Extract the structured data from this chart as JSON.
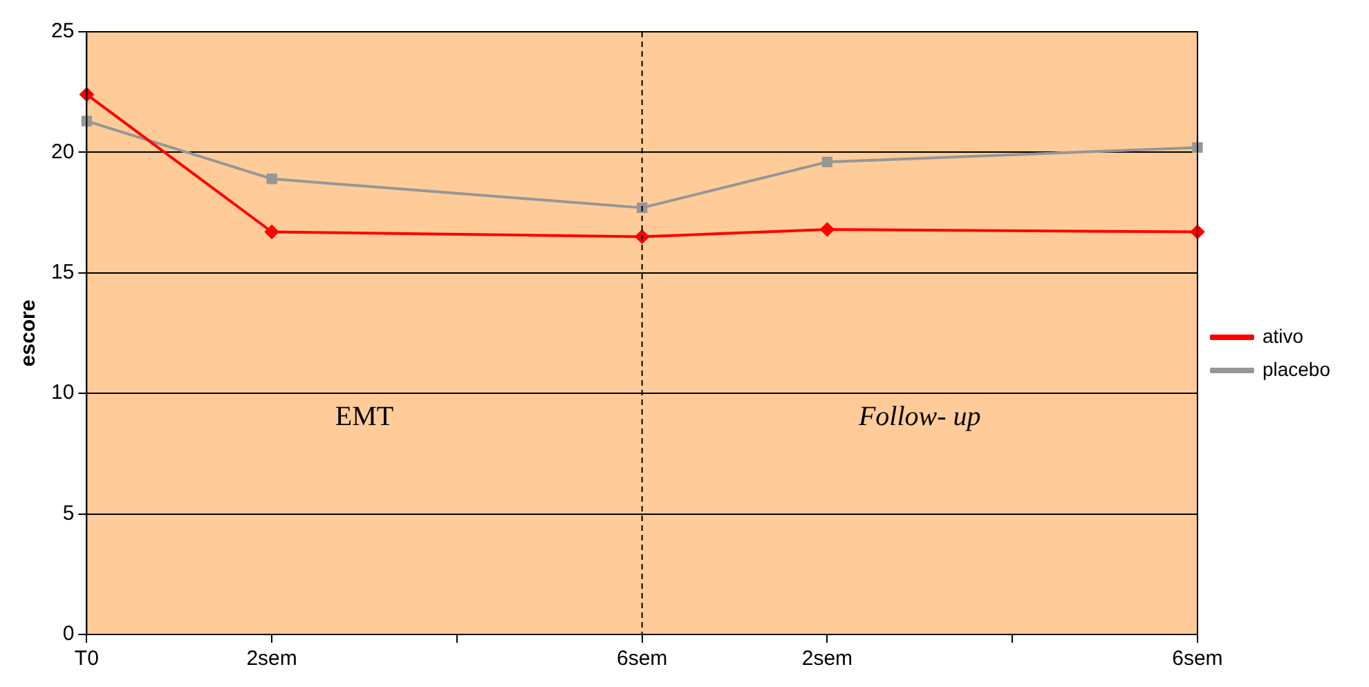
{
  "chart_data": {
    "type": "line",
    "ylabel": "escore",
    "categories": [
      "T0",
      "2sem",
      null,
      "6sem",
      "2sem",
      null,
      "6sem"
    ],
    "series": [
      {
        "name": "ativo",
        "color": "#ff0000",
        "marker": "diamond",
        "values": [
          22.4,
          16.7,
          null,
          16.5,
          16.8,
          null,
          16.7
        ]
      },
      {
        "name": "placebo",
        "color": "#969696",
        "marker": "square",
        "values": [
          21.3,
          18.9,
          null,
          17.7,
          19.6,
          null,
          20.2
        ]
      }
    ],
    "ylim": [
      0,
      25
    ],
    "yticks": [
      0,
      5,
      10,
      15,
      20,
      25
    ],
    "grid": "y",
    "legend": "right",
    "line_style": "solid",
    "ref_lines": [
      {
        "axis": "x",
        "value": "6sem",
        "color": "#000000",
        "line_style": "dashed"
      }
    ],
    "annotations": [
      "EMT",
      "Follow- up"
    ]
  }
}
